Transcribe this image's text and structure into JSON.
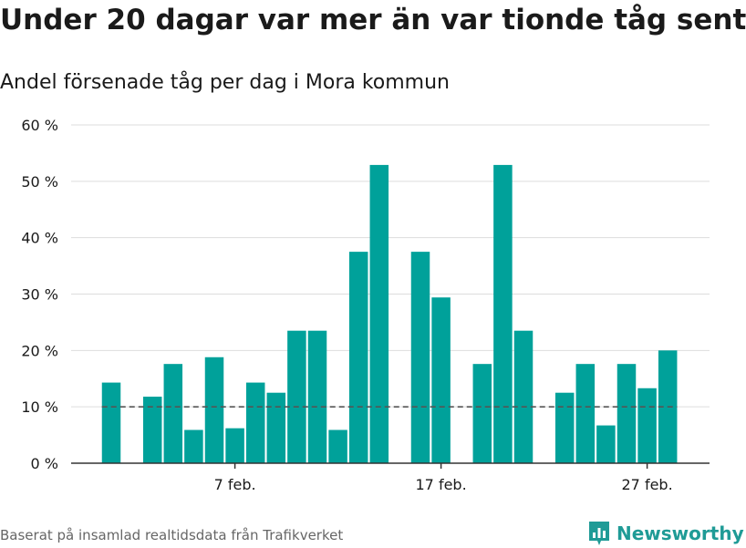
{
  "title": "Under 20 dagar var mer än var tionde tåg sent",
  "subtitle": "Andel försenade tåg per dag i Mora kommun",
  "footer": "Baserat på insamlad realtidsdata från Trafikverket",
  "brand": "Newsworthy",
  "colors": {
    "bar": "#00a19a",
    "grid": "#dddddd",
    "reference_line": "#555555",
    "brand": "#1f9b96"
  },
  "chart_data": {
    "type": "bar",
    "title": "Under 20 dagar var mer än var tionde tåg sent",
    "subtitle": "Andel försenade tåg per dag i Mora kommun",
    "x": [
      "2024-02-01",
      "2024-02-02",
      "2024-02-03",
      "2024-02-04",
      "2024-02-05",
      "2024-02-06",
      "2024-02-07",
      "2024-02-08",
      "2024-02-09",
      "2024-02-10",
      "2024-02-11",
      "2024-02-12",
      "2024-02-13",
      "2024-02-14",
      "2024-02-15",
      "2024-02-16",
      "2024-02-17",
      "2024-02-18",
      "2024-02-19",
      "2024-02-20",
      "2024-02-21",
      "2024-02-22",
      "2024-02-23",
      "2024-02-24",
      "2024-02-25",
      "2024-02-26",
      "2024-02-27",
      "2024-02-28",
      "2024-02-29"
    ],
    "values": [
      14.3,
      null,
      11.8,
      17.6,
      5.9,
      18.8,
      6.2,
      14.3,
      12.5,
      23.5,
      23.5,
      5.9,
      37.5,
      52.9,
      null,
      37.5,
      29.4,
      null,
      17.6,
      52.9,
      23.5,
      null,
      12.5,
      17.6,
      6.7,
      17.6,
      13.3,
      20.0,
      null
    ],
    "ticks": [
      {
        "label": "7 feb.",
        "x": "2024-02-07"
      },
      {
        "label": "17 feb.",
        "x": "2024-02-17"
      },
      {
        "label": "27 feb.",
        "x": "2024-02-27"
      }
    ],
    "ylim": [
      0,
      60
    ],
    "yticks": [
      0,
      10,
      20,
      30,
      40,
      50,
      60
    ],
    "ytick_labels": [
      "0 %",
      "10 %",
      "20 %",
      "30 %",
      "40 %",
      "50 %",
      "60 %"
    ],
    "reference_line": 10,
    "xlabel": "",
    "ylabel": "",
    "grid": true,
    "legend": "none"
  }
}
